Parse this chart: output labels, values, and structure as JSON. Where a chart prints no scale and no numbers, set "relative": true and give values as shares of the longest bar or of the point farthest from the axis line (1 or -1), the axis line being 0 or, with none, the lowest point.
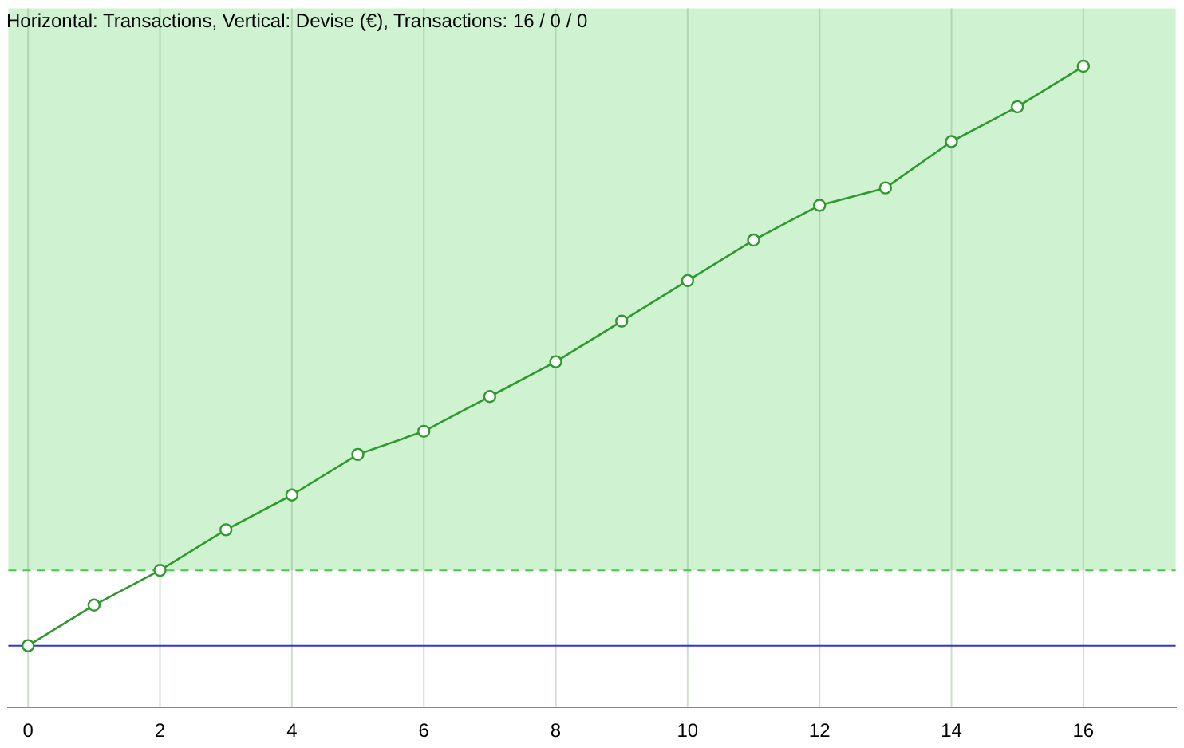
{
  "chart_data": {
    "type": "line",
    "title": "Horizontal: Transactions, Vertical: Devise (€), Transactions: 16 / 0 / 0",
    "relative": true,
    "x": [
      0,
      1,
      2,
      3,
      4,
      5,
      6,
      7,
      8,
      9,
      10,
      11,
      12,
      13,
      14,
      15,
      16
    ],
    "series": [
      {
        "color": "#2e9a2e",
        "values": [
          0,
          0.07,
          0.13,
          0.2,
          0.26,
          0.33,
          0.37,
          0.43,
          0.49,
          0.56,
          0.63,
          0.7,
          0.76,
          0.79,
          0.87,
          0.93,
          1
        ]
      }
    ],
    "xlim": [
      -0.3,
      17.4
    ],
    "xticks": [
      0,
      2,
      4,
      6,
      8,
      10,
      12,
      14,
      16
    ],
    "ref_lines": [
      {
        "axis": "y",
        "value": 0.13,
        "color": "#44cc44",
        "line_style": "dashed"
      }
    ],
    "bands": [
      {
        "axis": "y",
        "from": 0.13,
        "to": 1.1,
        "color": "#cff3d0"
      }
    ],
    "grid": "x",
    "marker": "circle",
    "line_style": "solid",
    "legend": false
  }
}
